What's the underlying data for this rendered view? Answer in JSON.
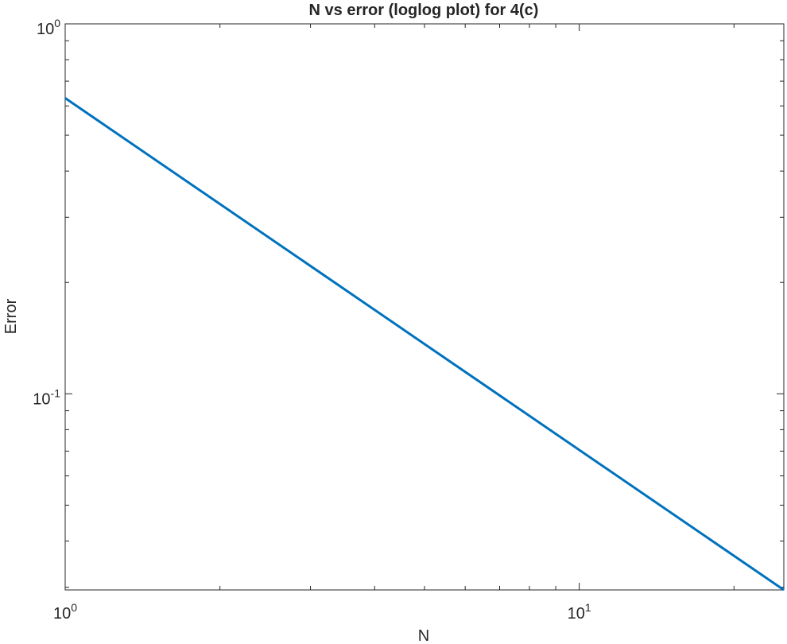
{
  "chart_data": {
    "type": "line",
    "title": "N vs error (loglog plot) for 4(c)",
    "xlabel": "N",
    "ylabel": "Error",
    "xscale": "log",
    "yscale": "log",
    "xlim": [
      1,
      25
    ],
    "ylim": [
      0.0295,
      1
    ],
    "grid": false,
    "box": true,
    "xticks": [
      {
        "value": 1,
        "base": "10",
        "exp": "0"
      },
      {
        "value": 10,
        "base": "10",
        "exp": "1"
      }
    ],
    "yticks": [
      {
        "value": 0.1,
        "base": "10",
        "exp": "-1"
      },
      {
        "value": 1,
        "base": "10",
        "exp": "0"
      }
    ],
    "series": [
      {
        "color": "#0072BD",
        "x": [
          1,
          25
        ],
        "y": [
          0.63,
          0.0295
        ]
      }
    ]
  }
}
